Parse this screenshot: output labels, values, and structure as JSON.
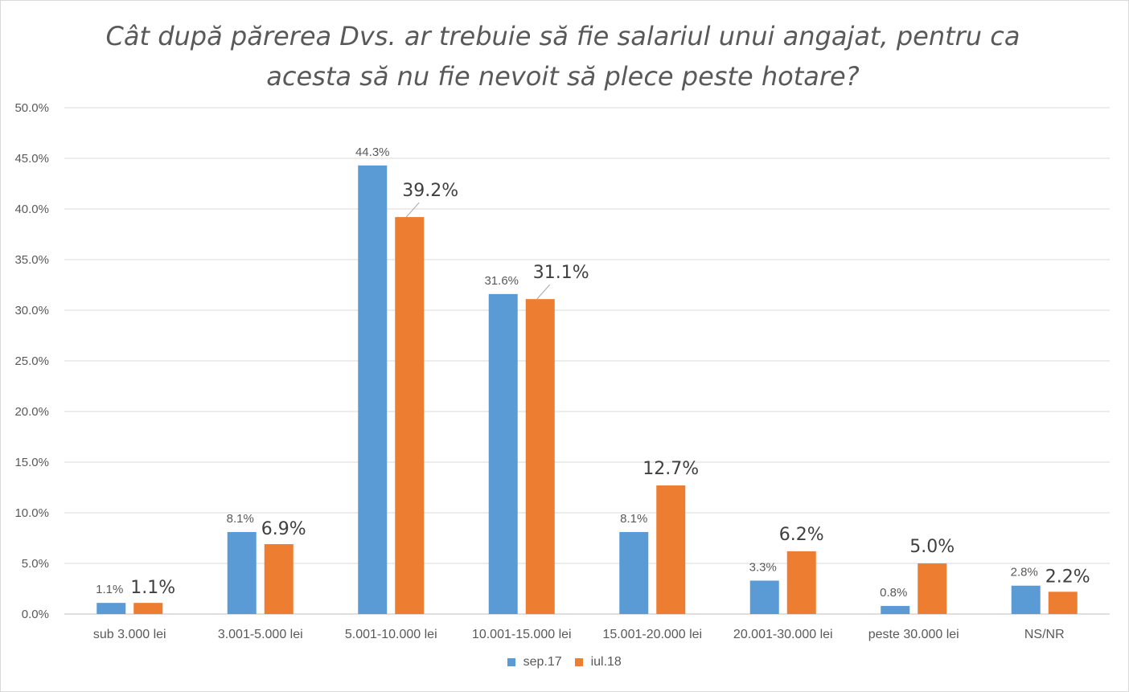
{
  "chart_data": {
    "type": "bar",
    "title": "Cât după părerea Dvs. ar trebuie să fie salariul unui angajat, pentru ca acesta să nu fie nevoit să plece peste hotare?",
    "xlabel": "",
    "ylabel": "",
    "categories": [
      "sub 3.000 lei",
      "3.001-5.000 lei",
      "5.001-10.000 lei",
      "10.001-15.000 lei",
      "15.001-20.000 lei",
      "20.001-30.000 lei",
      "peste 30.000 lei",
      "NS/NR"
    ],
    "series": [
      {
        "name": "sep.17",
        "color": "#5b9bd5",
        "values": [
          1.1,
          8.1,
          44.3,
          31.6,
          8.1,
          3.3,
          0.8,
          2.8
        ],
        "labels": [
          "1.1%",
          "8.1%",
          "44.3%",
          "31.6%",
          "8.1%",
          "3.3%",
          "0.8%",
          "2.8%"
        ]
      },
      {
        "name": "iul.18",
        "color": "#ed7d31",
        "values": [
          1.1,
          6.9,
          39.2,
          31.1,
          12.7,
          6.2,
          5.0,
          2.2
        ],
        "labels": [
          "1.1%",
          "6.9%",
          "39.2%",
          "31.1%",
          "12.7%",
          "6.2%",
          "5.0%",
          "2.2%"
        ]
      }
    ],
    "ylim": [
      0,
      50
    ],
    "yticks": [
      0,
      5,
      10,
      15,
      20,
      25,
      30,
      35,
      40,
      45,
      50
    ],
    "ytick_labels": [
      "0.0%",
      "5.0%",
      "10.0%",
      "15.0%",
      "20.0%",
      "25.0%",
      "30.0%",
      "35.0%",
      "40.0%",
      "45.0%",
      "50.0%"
    ],
    "grid": true,
    "legend_position": "bottom"
  }
}
